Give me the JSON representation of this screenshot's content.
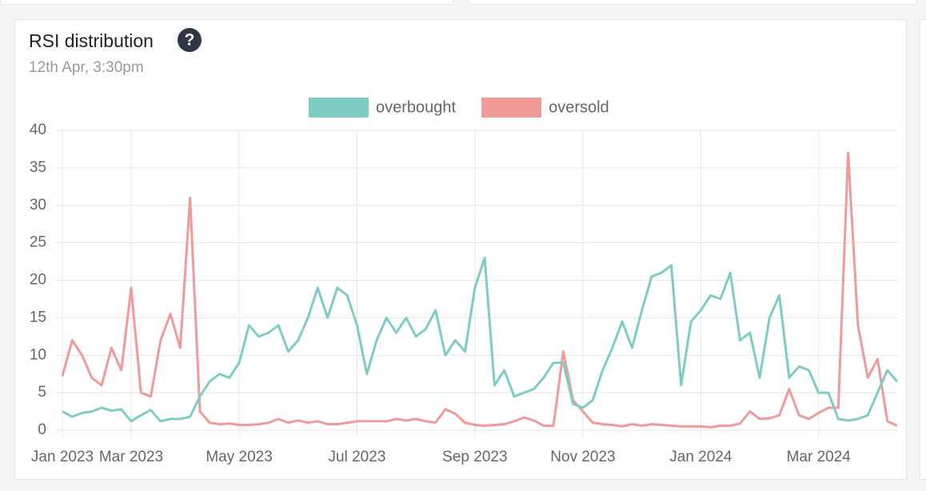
{
  "chart_data": {
    "type": "line",
    "title": "RSI distribution",
    "help_icon": "?",
    "subtitle": "12th Apr, 3:30pm",
    "categories": [
      "Jan 2023",
      null,
      null,
      null,
      null,
      null,
      null,
      "Mar 2023",
      null,
      null,
      null,
      null,
      null,
      null,
      null,
      null,
      null,
      null,
      "May 2023",
      null,
      null,
      null,
      null,
      null,
      null,
      null,
      null,
      null,
      null,
      null,
      "Jul 2023",
      null,
      null,
      null,
      null,
      null,
      null,
      null,
      null,
      null,
      null,
      null,
      "Sep 2023",
      null,
      null,
      null,
      null,
      null,
      null,
      null,
      null,
      null,
      null,
      "Nov 2023",
      null,
      null,
      null,
      null,
      null,
      null,
      null,
      null,
      null,
      null,
      null,
      "Jan 2024",
      null,
      null,
      null,
      null,
      null,
      null,
      null,
      null,
      null,
      null,
      null,
      "Mar 2024",
      null,
      null,
      null,
      null,
      null,
      null,
      null,
      null
    ],
    "series": [
      {
        "name": "overbought",
        "color": "#7ecdc4",
        "values": [
          2.5,
          1.8,
          2.3,
          2.5,
          3.0,
          2.6,
          2.8,
          1.2,
          2.0,
          2.7,
          1.2,
          1.5,
          1.5,
          1.8,
          4.5,
          6.5,
          7.5,
          7.0,
          9.0,
          14,
          12.5,
          13,
          14,
          10.5,
          12,
          15,
          19,
          15,
          19,
          18,
          14,
          7.5,
          12,
          15,
          13,
          15,
          12.5,
          13.5,
          16,
          10,
          12,
          10.5,
          19,
          23,
          6,
          8,
          4.5,
          5,
          5.5,
          7,
          9,
          9,
          3.5,
          3,
          4,
          8,
          11,
          14.5,
          11,
          16,
          20.5,
          21,
          22,
          6,
          14.5,
          16,
          18,
          17.5,
          21,
          12,
          13,
          7,
          15,
          18,
          7,
          8.5,
          8,
          5,
          5,
          1.5,
          1.3,
          1.5,
          2,
          5,
          8,
          6.5
        ]
      },
      {
        "name": "oversold",
        "color": "#f09a9a",
        "values": [
          7.2,
          12,
          10,
          7,
          6,
          11,
          8,
          19,
          5,
          4.5,
          12,
          15.5,
          11,
          31,
          2.5,
          1,
          0.8,
          0.9,
          0.7,
          0.7,
          0.8,
          1.0,
          1.5,
          1.0,
          1.3,
          1.0,
          1.2,
          0.8,
          0.8,
          1.0,
          1.2,
          1.2,
          1.2,
          1.2,
          1.5,
          1.3,
          1.5,
          1.2,
          1.0,
          2.8,
          2.2,
          1.0,
          0.7,
          0.6,
          0.7,
          0.8,
          1.2,
          1.7,
          1.3,
          0.6,
          0.6,
          10.5,
          4,
          2.5,
          1.0,
          0.8,
          0.7,
          0.5,
          0.8,
          0.6,
          0.8,
          0.7,
          0.6,
          0.5,
          0.5,
          0.5,
          0.4,
          0.6,
          0.6,
          0.9,
          2.5,
          1.5,
          1.6,
          2,
          5.5,
          2,
          1.5,
          2.3,
          3,
          3,
          37,
          14,
          7,
          9.5,
          1.2,
          0.6
        ]
      }
    ],
    "ylim": [
      0,
      40
    ],
    "yticks": [
      0,
      5,
      10,
      15,
      20,
      25,
      30,
      35,
      40
    ],
    "grid": true,
    "legend": "top"
  }
}
